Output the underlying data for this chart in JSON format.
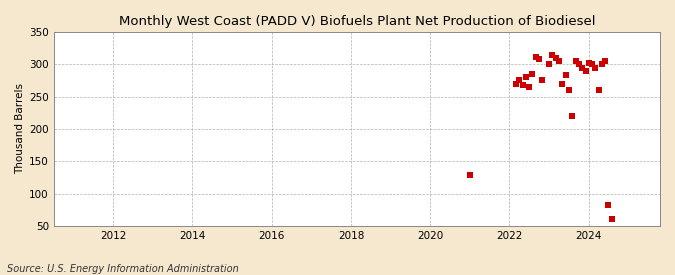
{
  "title": "Monthly West Coast (PADD V) Biofuels Plant Net Production of Biodiesel",
  "ylabel": "Thousand Barrels",
  "source": "Source: U.S. Energy Information Administration",
  "background_color": "#f5e8ce",
  "plot_background_color": "#ffffff",
  "marker_color": "#cc0000",
  "marker_size": 4,
  "xlim_left": 2010.5,
  "xlim_right": 2025.8,
  "ylim_bottom": 50,
  "ylim_top": 350,
  "yticks": [
    50,
    100,
    150,
    200,
    250,
    300,
    350
  ],
  "xticks": [
    2012,
    2014,
    2016,
    2018,
    2020,
    2022,
    2024
  ],
  "data_x": [
    2022.17,
    2022.25,
    2022.33,
    2022.42,
    2022.5,
    2022.58,
    2022.67,
    2022.75,
    2022.83,
    2023.0,
    2023.08,
    2023.17,
    2023.25,
    2023.33,
    2023.42,
    2023.5,
    2023.58,
    2023.67,
    2023.75,
    2023.83,
    2023.92,
    2024.0,
    2024.08,
    2024.17,
    2024.25,
    2024.33,
    2024.42,
    2024.5,
    2024.58,
    2021.0
  ],
  "data_y": [
    270,
    275,
    268,
    280,
    265,
    285,
    312,
    308,
    275,
    300,
    315,
    310,
    305,
    270,
    283,
    260,
    220,
    305,
    300,
    295,
    290,
    302,
    300,
    295,
    260,
    300,
    305,
    82,
    60,
    128
  ]
}
